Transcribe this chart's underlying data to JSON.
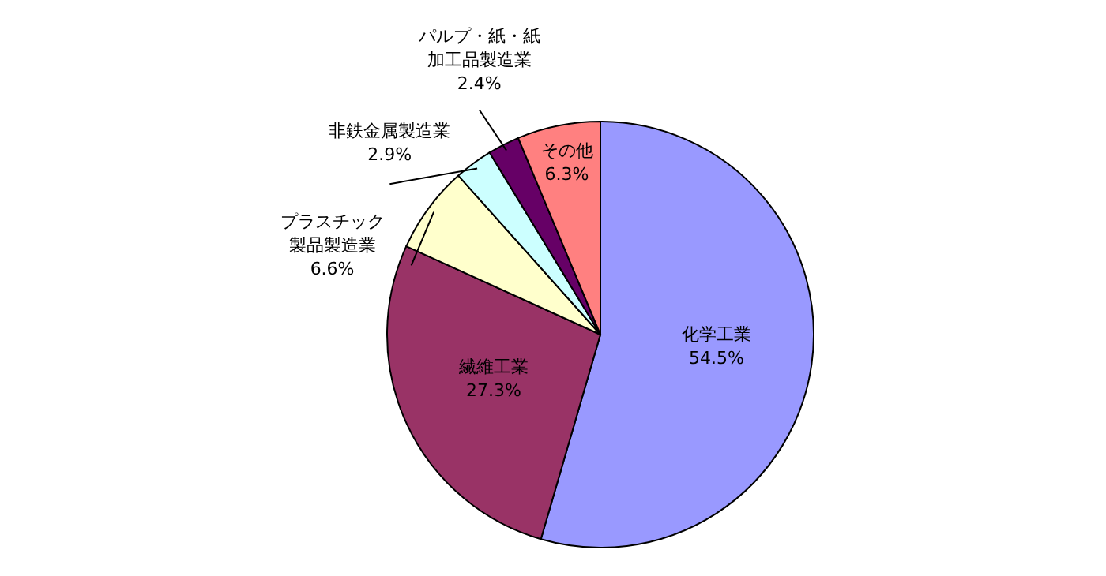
{
  "chart_data": {
    "type": "pie",
    "categories": [
      "化学工業",
      "繊維工業",
      "プラスチック製品製造業",
      "非鉄金属製造業",
      "パルプ・紙・紙加工品製造業",
      "その他"
    ],
    "values": [
      54.5,
      27.3,
      6.6,
      2.9,
      2.4,
      6.3
    ],
    "value_labels": [
      "54.5%",
      "27.3%",
      "6.6%",
      "2.9%",
      "2.4%",
      "6.3%"
    ],
    "colors": [
      "#9999ff",
      "#993366",
      "#ffffcc",
      "#ccffff",
      "#660066",
      "#ff8080"
    ]
  }
}
